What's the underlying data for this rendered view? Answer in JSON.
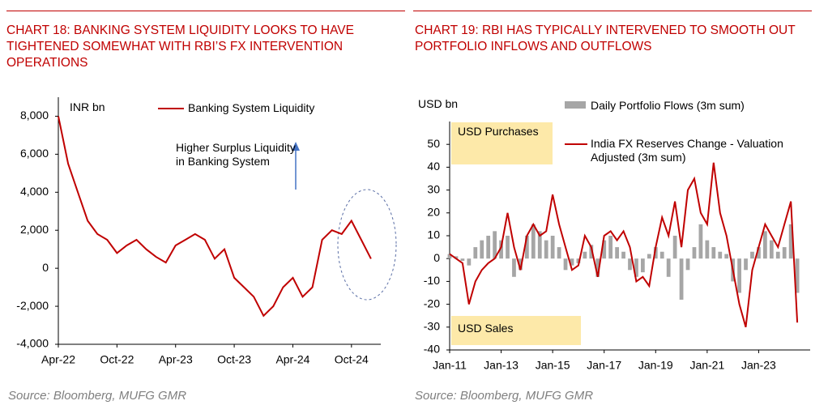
{
  "chart_data": [
    {
      "type": "line",
      "title": "CHART 18: BANKING SYSTEM LIQUIDITY LOOKS TO HAVE TIGHTENED SOMEWHAT WITH RBI’S FX INTERVENTION OPERATIONS",
      "y_axis_label": "INR bn",
      "annotations": [
        "Higher Surplus Liquidity in Banking System"
      ],
      "source": "Source: Bloomberg, MUFG GMR",
      "x": [
        "2022-04",
        "2022-05",
        "2022-06",
        "2022-07",
        "2022-08",
        "2022-09",
        "2022-10",
        "2022-11",
        "2022-12",
        "2023-01",
        "2023-02",
        "2023-03",
        "2023-04",
        "2023-05",
        "2023-06",
        "2023-07",
        "2023-08",
        "2023-09",
        "2023-10",
        "2023-11",
        "2023-12",
        "2024-01",
        "2024-02",
        "2024-03",
        "2024-04",
        "2024-05",
        "2024-06",
        "2024-07",
        "2024-08",
        "2024-09",
        "2024-10",
        "2024-11",
        "2024-12"
      ],
      "series": [
        {
          "name": "Banking System Liquidity",
          "color": "#c00000",
          "values": [
            8000,
            5500,
            4000,
            2500,
            1800,
            1500,
            800,
            1200,
            1500,
            1000,
            600,
            300,
            1200,
            1500,
            1800,
            1500,
            500,
            1000,
            -500,
            -1000,
            -1500,
            -2500,
            -2000,
            -1000,
            -500,
            -1500,
            -1000,
            1500,
            2000,
            1800,
            2500,
            1500,
            500
          ]
        }
      ],
      "xlim": [
        "2022-04",
        "2025-01"
      ],
      "xticks": [
        {
          "value": "2022-04",
          "label": "Apr-22"
        },
        {
          "value": "2022-10",
          "label": "Oct-22"
        },
        {
          "value": "2023-04",
          "label": "Apr-23"
        },
        {
          "value": "2023-10",
          "label": "Oct-23"
        },
        {
          "value": "2024-04",
          "label": "Apr-24"
        },
        {
          "value": "2024-10",
          "label": "Oct-24"
        }
      ],
      "ylim": [
        -4000,
        9000
      ],
      "yticks": [
        {
          "value": -4000,
          "label": "-4,000"
        },
        {
          "value": -2000,
          "label": "-2,000"
        },
        0,
        {
          "value": 2000,
          "label": "2,000"
        },
        {
          "value": 4000,
          "label": "4,000"
        },
        {
          "value": 6000,
          "label": "6,000"
        },
        {
          "value": 8000,
          "label": "8,000"
        }
      ],
      "grid": false
    },
    {
      "type": "combo",
      "title": "CHART 19: RBI HAS TYPICALLY INTERVENED TO SMOOTH OUT PORTFOLIO INFLOWS AND OUTFLOWS",
      "y_axis_label": "USD bn",
      "annotations": [
        "USD Purchases",
        "USD Sales"
      ],
      "source": "Source: Bloomberg, MUFG GMR",
      "x": [
        "2011-01",
        "2011-04",
        "2011-07",
        "2011-10",
        "2012-01",
        "2012-04",
        "2012-07",
        "2012-10",
        "2013-01",
        "2013-04",
        "2013-07",
        "2013-10",
        "2014-01",
        "2014-04",
        "2014-07",
        "2014-10",
        "2015-01",
        "2015-04",
        "2015-07",
        "2015-10",
        "2016-01",
        "2016-04",
        "2016-07",
        "2016-10",
        "2017-01",
        "2017-04",
        "2017-07",
        "2017-10",
        "2018-01",
        "2018-04",
        "2018-07",
        "2018-10",
        "2019-01",
        "2019-04",
        "2019-07",
        "2019-10",
        "2020-01",
        "2020-04",
        "2020-07",
        "2020-10",
        "2021-01",
        "2021-04",
        "2021-07",
        "2021-10",
        "2022-01",
        "2022-04",
        "2022-07",
        "2022-10",
        "2023-01",
        "2023-04",
        "2023-07",
        "2023-10",
        "2024-01",
        "2024-04",
        "2024-07"
      ],
      "series": [
        {
          "name": "Daily Portfolio Flows (3m sum)",
          "type": "bar",
          "color": "#a6a6a6",
          "values": [
            2,
            1,
            -1,
            -3,
            5,
            8,
            10,
            12,
            8,
            10,
            -8,
            -5,
            10,
            15,
            12,
            8,
            10,
            5,
            -5,
            -3,
            -2,
            3,
            6,
            -8,
            8,
            10,
            5,
            3,
            -5,
            -8,
            -6,
            2,
            5,
            3,
            -8,
            10,
            -18,
            -5,
            5,
            15,
            8,
            5,
            3,
            2,
            -10,
            -15,
            -5,
            3,
            5,
            12,
            8,
            3,
            5,
            15,
            -15
          ]
        },
        {
          "name": "India FX Reserves Change - Valuation Adjusted (3m sum)",
          "type": "line",
          "color": "#c00000",
          "values": [
            2,
            0,
            -2,
            -20,
            -10,
            -5,
            -2,
            0,
            5,
            20,
            5,
            -5,
            10,
            15,
            10,
            12,
            28,
            15,
            5,
            -5,
            -3,
            10,
            5,
            -8,
            10,
            12,
            8,
            12,
            5,
            -10,
            -8,
            -12,
            5,
            18,
            10,
            25,
            5,
            30,
            35,
            20,
            15,
            42,
            20,
            10,
            -5,
            -20,
            -30,
            -5,
            5,
            15,
            10,
            5,
            15,
            25,
            -28
          ]
        }
      ],
      "xlim": [
        "2011-01",
        "2025-01"
      ],
      "xticks": [
        {
          "value": "2011-01",
          "label": "Jan-11"
        },
        {
          "value": "2013-01",
          "label": "Jan-13"
        },
        {
          "value": "2015-01",
          "label": "Jan-15"
        },
        {
          "value": "2017-01",
          "label": "Jan-17"
        },
        {
          "value": "2019-01",
          "label": "Jan-19"
        },
        {
          "value": "2021-01",
          "label": "Jan-21"
        },
        {
          "value": "2023-01",
          "label": "Jan-23"
        }
      ],
      "ylim": [
        -40,
        60
      ],
      "yticks": [
        -40,
        -30,
        -20,
        -10,
        0,
        10,
        20,
        30,
        40,
        50
      ],
      "grid": false
    }
  ]
}
